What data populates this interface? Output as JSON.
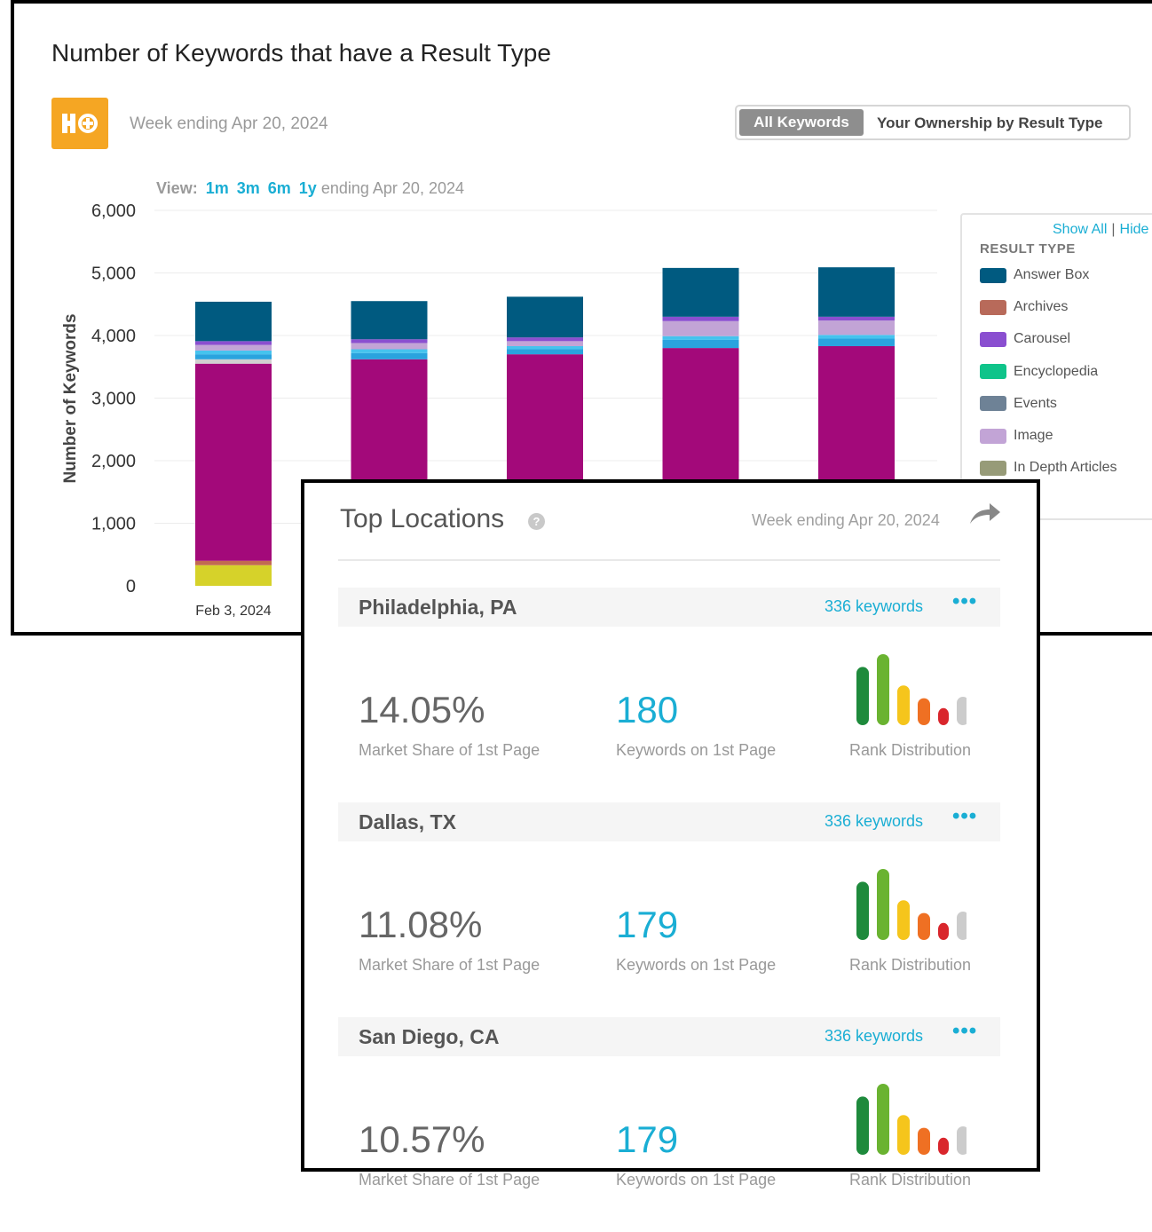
{
  "chart_panel": {
    "title": "Number of Keywords that have a Result Type",
    "week": "Week ending Apr 20, 2024",
    "toggle": {
      "all": "All Keywords",
      "ownership": "Your Ownership by Result Type"
    },
    "view": {
      "label": "View:",
      "options": [
        "1m",
        "3m",
        "6m",
        "1y"
      ],
      "suffix": "ending Apr 20, 2024"
    },
    "legend": {
      "show_all": "Show All",
      "separator": "|",
      "hide": "Hide",
      "title": "RESULT TYPE",
      "items": [
        {
          "label": "Answer Box",
          "color": "#005a80"
        },
        {
          "label": "Archives",
          "color": "#b86a5a"
        },
        {
          "label": "Carousel",
          "color": "#8a4fd0"
        },
        {
          "label": "Encyclopedia",
          "color": "#0fc48a"
        },
        {
          "label": "Events",
          "color": "#6e8296"
        },
        {
          "label": "Image",
          "color": "#c2a4d6"
        },
        {
          "label": "In Depth Articles",
          "color": "#979b78"
        }
      ]
    }
  },
  "chart_data": {
    "type": "bar",
    "stacked": true,
    "title": "Number of Keywords that have a Result Type",
    "ylabel": "Number of Keywords",
    "xlabel": "",
    "ylim": [
      0,
      6000
    ],
    "yticks": [
      "0",
      "1,000",
      "2,000",
      "3,000",
      "4,000",
      "5,000",
      "6,000"
    ],
    "categories": [
      "Feb 3, 2024",
      "",
      "",
      "",
      ""
    ],
    "series": [
      {
        "name": "",
        "color": "#d6d22a",
        "values": [
          330,
          0,
          0,
          0,
          0
        ]
      },
      {
        "name": "",
        "color": "#c26a52",
        "values": [
          70,
          0,
          0,
          0,
          0
        ]
      },
      {
        "name": "",
        "color": "#a3097a",
        "values": [
          3150,
          3620,
          3700,
          3800,
          3830
        ]
      },
      {
        "name": "",
        "color": "#d0d0d0",
        "values": [
          70,
          0,
          0,
          0,
          0
        ]
      },
      {
        "name": "",
        "color": "#2aa3de",
        "values": [
          80,
          100,
          80,
          130,
          120
        ]
      },
      {
        "name": "",
        "color": "#46c3ee",
        "values": [
          60,
          60,
          50,
          60,
          60
        ]
      },
      {
        "name": "Image",
        "color": "#c2a4d6",
        "values": [
          90,
          100,
          80,
          240,
          230
        ]
      },
      {
        "name": "Carousel",
        "color": "#8a4fd0",
        "values": [
          60,
          60,
          60,
          70,
          60
        ]
      },
      {
        "name": "Answer Box",
        "color": "#005a80",
        "values": [
          630,
          610,
          650,
          780,
          790
        ]
      }
    ],
    "grid": true,
    "legend": "right"
  },
  "locations": {
    "title": "Top Locations",
    "help": "?",
    "week": "Week ending Apr 20, 2024",
    "items": [
      {
        "name": "Philadelphia, PA",
        "keywords": "336 keywords",
        "more": "•••",
        "market_share": "14.05%",
        "market_share_label": "Market Share of 1st Page",
        "kw_1st": "180",
        "kw_1st_label": "Keywords on 1st Page",
        "rank_label": "Rank Distribution"
      },
      {
        "name": "Dallas, TX",
        "keywords": "336 keywords",
        "more": "•••",
        "market_share": "11.08%",
        "market_share_label": "Market Share of 1st Page",
        "kw_1st": "179",
        "kw_1st_label": "Keywords on 1st Page",
        "rank_label": "Rank Distribution"
      },
      {
        "name": "San Diego, CA",
        "keywords": "336 keywords",
        "more": "•••",
        "market_share": "10.57%",
        "market_share_label": "Market Share of 1st Page",
        "kw_1st": "179",
        "kw_1st_label": "Keywords on 1st Page",
        "rank_label": "Rank Distribution"
      }
    ],
    "rank_colors": [
      "#1e8a3c",
      "#6ab331",
      "#f5c51c",
      "#ef7023",
      "#d9262c",
      "#cccccc"
    ],
    "rank_levels": [
      0.82,
      1.0,
      0.56,
      0.38,
      0.24,
      0.4
    ]
  }
}
